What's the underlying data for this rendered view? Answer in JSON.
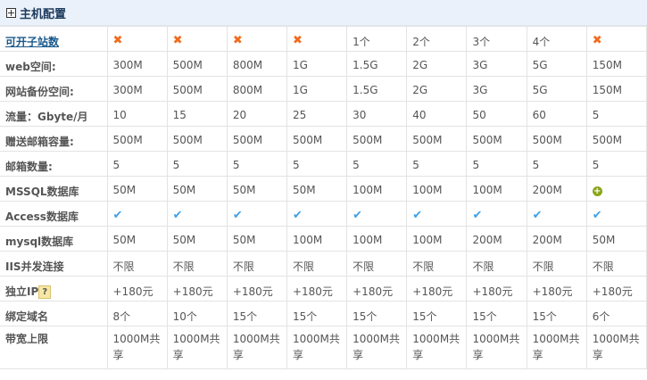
{
  "section_title": "主机配置",
  "colors": {
    "header_bg": "#eaf1fa",
    "cross": "#f26b1d",
    "check": "#3fa0e8",
    "add": "#8aa51a"
  },
  "rows": [
    {
      "label": "可开子站数",
      "link": true,
      "cells": [
        "x",
        "x",
        "x",
        "x",
        "1个",
        "2个",
        "3个",
        "4个",
        "x"
      ]
    },
    {
      "label": "web空间:",
      "cells": [
        "300M",
        "500M",
        "800M",
        "1G",
        "1.5G",
        "2G",
        "3G",
        "5G",
        "150M"
      ]
    },
    {
      "label": "网站备份空间:",
      "cells": [
        "300M",
        "500M",
        "800M",
        "1G",
        "1.5G",
        "2G",
        "3G",
        "5G",
        "150M"
      ]
    },
    {
      "label": "流量：Gbyte/月",
      "cells": [
        "10",
        "15",
        "20",
        "25",
        "30",
        "40",
        "50",
        "60",
        "5"
      ]
    },
    {
      "label": "赠送邮箱容量:",
      "cells": [
        "500M",
        "500M",
        "500M",
        "500M",
        "500M",
        "500M",
        "500M",
        "500M",
        "500M"
      ]
    },
    {
      "label": "邮箱数量:",
      "cells": [
        "5",
        "5",
        "5",
        "5",
        "5",
        "5",
        "5",
        "5",
        "5"
      ]
    },
    {
      "label": "MSSQL数据库",
      "cells": [
        "50M",
        "50M",
        "50M",
        "50M",
        "100M",
        "100M",
        "100M",
        "200M",
        "add"
      ]
    },
    {
      "label": "Access数据库",
      "cells": [
        "check",
        "check",
        "check",
        "check",
        "check",
        "check",
        "check",
        "check",
        "check"
      ]
    },
    {
      "label": "mysql数据库",
      "cells": [
        "50M",
        "50M",
        "50M",
        "100M",
        "100M",
        "100M",
        "200M",
        "200M",
        "50M"
      ]
    },
    {
      "label": "IIS并发连接",
      "cells": [
        "不限",
        "不限",
        "不限",
        "不限",
        "不限",
        "不限",
        "不限",
        "不限",
        "不限"
      ]
    },
    {
      "label": "独立IP",
      "help": true,
      "cells": [
        "+180元",
        "+180元",
        "+180元",
        "+180元",
        "+180元",
        "+180元",
        "+180元",
        "+180元",
        "+180元"
      ]
    },
    {
      "label": "绑定域名",
      "cells": [
        "8个",
        "10个",
        "15个",
        "15个",
        "15个",
        "15个",
        "15个",
        "15个",
        "6个"
      ]
    },
    {
      "label": "带宽上限",
      "cells": [
        "1000M共享",
        "1000M共享",
        "1000M共享",
        "1000M共享",
        "1000M共享",
        "1000M共享",
        "1000M共享",
        "1000M共享",
        "1000M共享"
      ]
    }
  ],
  "icons": {
    "x": "cross-icon",
    "check": "check-icon",
    "add": "add-circle-icon",
    "help": "question-icon"
  }
}
